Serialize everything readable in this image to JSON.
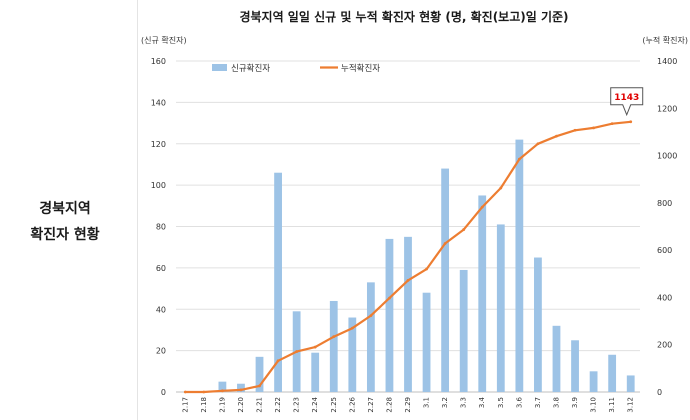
{
  "side_label": {
    "line1": "경북지역",
    "line2": "확진자 현황"
  },
  "chart_data": {
    "type": "bar",
    "title": "경북지역 일일 신규 및 누적 확진자 현황 (명, 확진(보고)일 기준)",
    "left_axis_label": "(신규 확진자)",
    "right_axis_label": "(누적 확진자)",
    "categories": [
      "2.17",
      "2.18",
      "2.19",
      "2.20",
      "2.21",
      "2.22",
      "2.23",
      "2.24",
      "2.25",
      "2.26",
      "2.27",
      "2.28",
      "2.29",
      "3.1",
      "3.2",
      "3.3",
      "3.4",
      "3.5",
      "3.6",
      "3.7",
      "3.8",
      "3.9",
      "3.10",
      "3.11",
      "3.12"
    ],
    "series": [
      {
        "name": "신규확진자",
        "type": "bar",
        "axis": "left",
        "color": "#9dc3e6",
        "values": [
          0,
          0,
          5,
          4,
          17,
          106,
          39,
          19,
          44,
          36,
          53,
          74,
          75,
          48,
          108,
          59,
          95,
          81,
          122,
          65,
          32,
          25,
          10,
          18,
          8
        ]
      },
      {
        "name": "누적확진자",
        "type": "line",
        "axis": "right",
        "color": "#ed7d31",
        "values": [
          0,
          0,
          5,
          9,
          26,
          132,
          171,
          190,
          234,
          270,
          323,
          397,
          472,
          520,
          628,
          687,
          782,
          863,
          985,
          1050,
          1082,
          1107,
          1117,
          1135,
          1143
        ]
      }
    ],
    "left_ylim": [
      0,
      160
    ],
    "left_ticks": [
      0,
      20,
      40,
      60,
      80,
      100,
      120,
      140,
      160
    ],
    "right_ylim": [
      0,
      1400
    ],
    "right_ticks": [
      0,
      200,
      400,
      600,
      800,
      1000,
      1200,
      1400
    ],
    "annotation": {
      "category": "3.12",
      "series": "누적확진자",
      "text": "1143",
      "color": "#e00000"
    },
    "grid": true,
    "legend": "top-left"
  }
}
